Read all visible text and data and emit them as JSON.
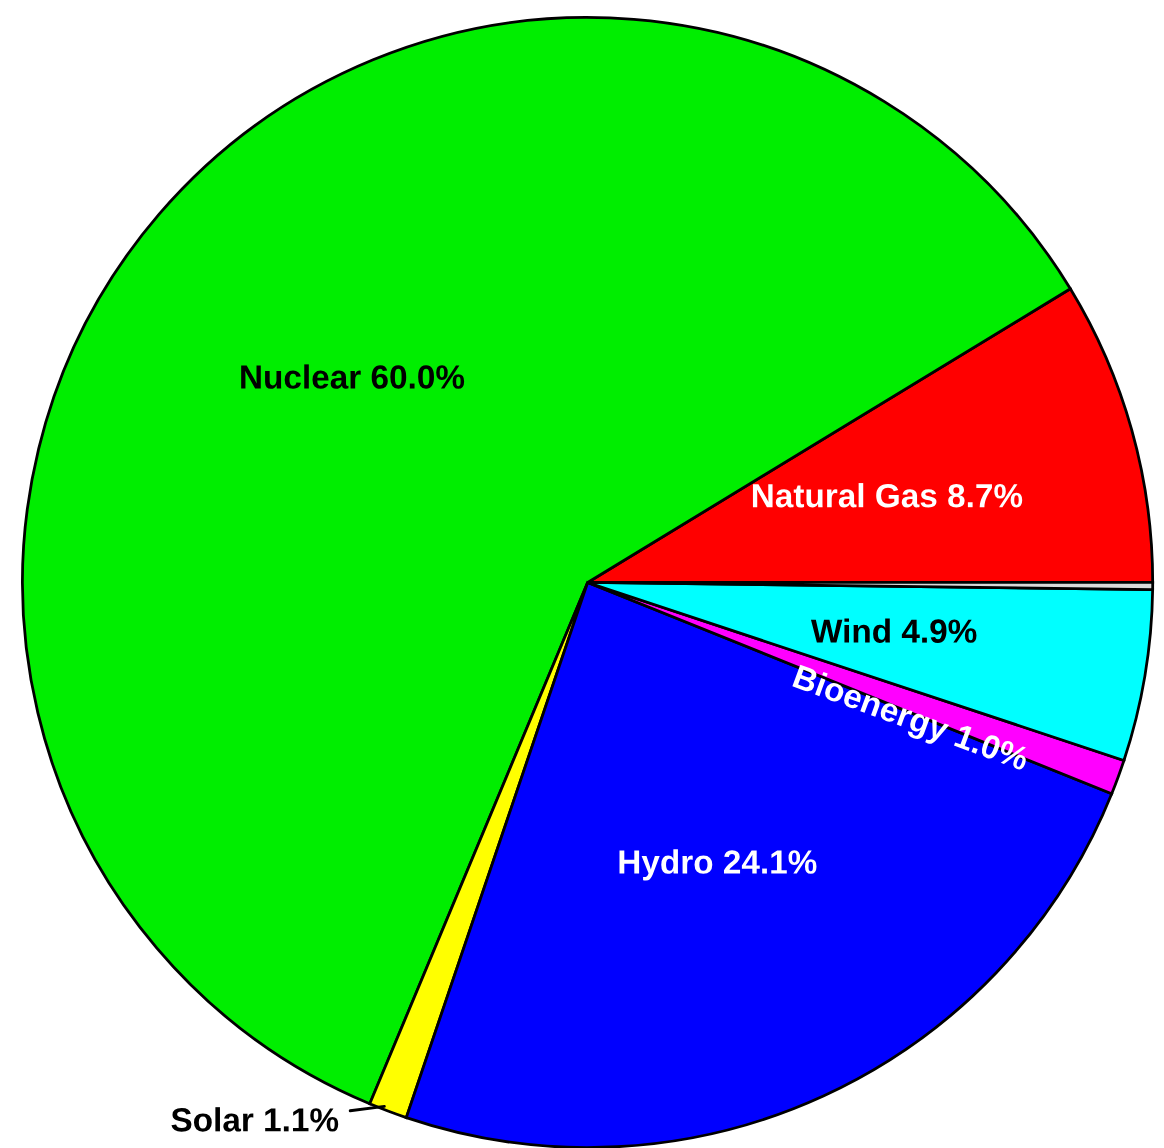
{
  "chart_data": {
    "type": "pie",
    "categories": [
      "Natural Gas 8.7%",
      "Nuclear 60.0%",
      "Solar 1.1%",
      "Hydro 24.1%",
      "Bioenergy 1.0%",
      "Wind 4.9%",
      null
    ],
    "values": [
      8.7,
      60.0,
      1.1,
      24.1,
      1.0,
      4.9,
      0.2
    ],
    "colors": [
      "#ff0000",
      "#00ee00",
      "#ffff00",
      "#0000ff",
      "#ff00ff",
      "#00ffff",
      "#d9d9d9"
    ],
    "legend": false
  }
}
